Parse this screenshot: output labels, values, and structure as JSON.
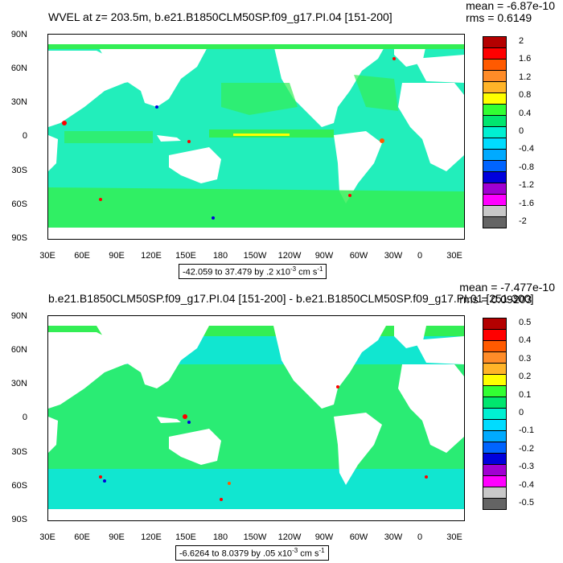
{
  "panels": [
    {
      "title": "WVEL at z= 203.5m, b.e21.B1850CLM50SP.f09_g17.PI.04 [151-200]",
      "mean": "mean = -6.87e-10",
      "rms": "rms = 0.6149",
      "range_text": "-42.059 to 37.479 by .2 x10",
      "range_exp": "-3",
      "range_unit": " cm s",
      "range_unit_exp": "-1",
      "colorbar_labels": [
        "2",
        "1.6",
        "1.2",
        "0.8",
        "0.4",
        "0",
        "-0.4",
        "-0.8",
        "-1.2",
        "-1.6",
        "-2"
      ]
    },
    {
      "title": "b.e21.B1850CLM50SP.f09_g17.PI.04 [151-200] - b.e21.B1850CLM50SP.f09_g17.PI.01 [251-300]",
      "mean": "mean = -7.477e-10",
      "rms": "rms = 0.09203",
      "range_text": "-6.6264 to 8.0379 by .05 x10",
      "range_exp": "-3",
      "range_unit": " cm s",
      "range_unit_exp": "-1",
      "colorbar_labels": [
        "0.5",
        "0.4",
        "0.3",
        "0.2",
        "0.1",
        "0",
        "-0.1",
        "-0.2",
        "-0.3",
        "-0.4",
        "-0.5"
      ]
    }
  ],
  "lat_labels": [
    "90N",
    "60N",
    "30N",
    "0",
    "30S",
    "60S",
    "90S"
  ],
  "lon_labels": [
    "30E",
    "60E",
    "90E",
    "120E",
    "150E",
    "180",
    "150W",
    "120W",
    "90W",
    "60W",
    "30W",
    "0",
    "30E"
  ],
  "colorbar_colors": [
    "#b40000",
    "#ff0000",
    "#ff5a00",
    "#ff8c28",
    "#ffb428",
    "#ffff00",
    "#32ff32",
    "#00e66e",
    "#00f0d2",
    "#00dcff",
    "#00aaff",
    "#0064ff",
    "#0000dc",
    "#a000d2",
    "#ff00ff",
    "#c8c8c8",
    "#646464"
  ],
  "field_colors": {
    "ocean_light": "#22eebb",
    "ocean_green": "#33ee55",
    "ocean_cyan": "#11e6d0",
    "land": "#ffffff"
  }
}
